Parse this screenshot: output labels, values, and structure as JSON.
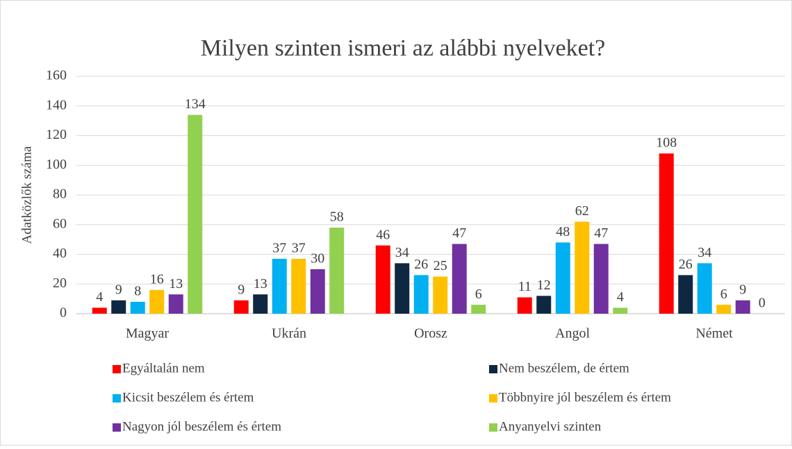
{
  "chart_data": {
    "type": "bar",
    "title": "Milyen szinten ismeri az alábbi nyelveket?",
    "y_label": "Adatközlők száma",
    "categories": [
      "Magyar",
      "Ukrán",
      "Orosz",
      "Angol",
      "Német"
    ],
    "series": [
      {
        "name": "Egyáltalán nem",
        "color": "#ff0000",
        "values": [
          4,
          9,
          46,
          11,
          108
        ]
      },
      {
        "name": "Nem beszélem, de értem",
        "color": "#0e2841",
        "values": [
          9,
          13,
          34,
          12,
          26
        ]
      },
      {
        "name": "Kicsit beszélem és értem",
        "color": "#00b0f0",
        "values": [
          8,
          37,
          26,
          48,
          34
        ]
      },
      {
        "name": "Többnyire jól beszélem és értem",
        "color": "#ffc000",
        "values": [
          16,
          37,
          25,
          62,
          6
        ]
      },
      {
        "name": "Nagyon jól beszélem és értem",
        "color": "#7030a0",
        "values": [
          13,
          30,
          47,
          47,
          9
        ]
      },
      {
        "name": "Anyanyelvi szinten",
        "color": "#92d050",
        "values": [
          134,
          58,
          6,
          4,
          0
        ]
      }
    ],
    "ylim": [
      0,
      160
    ],
    "yticks": [
      0,
      20,
      40,
      60,
      80,
      100,
      120,
      140,
      160
    ],
    "grid": true,
    "legend": "bottom"
  }
}
